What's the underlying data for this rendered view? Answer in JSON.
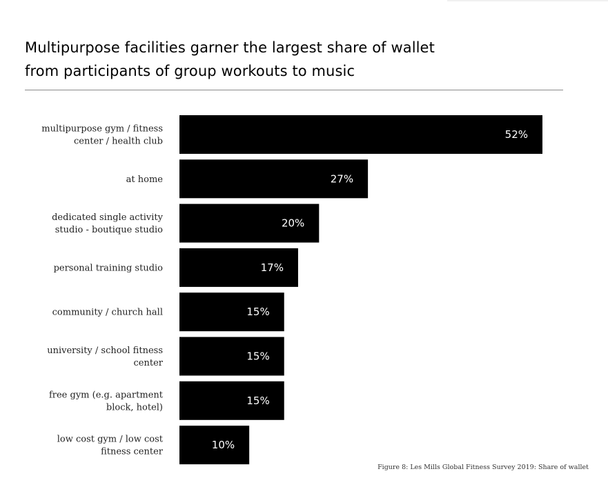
{
  "chart_data": {
    "type": "bar",
    "orientation": "horizontal",
    "title_lines": [
      "Multipurpose facilities garner the largest share of wallet",
      "from participants of group workouts to music"
    ],
    "categories": [
      [
        "multipurpose gym / fitness",
        "center / health club"
      ],
      [
        "at home"
      ],
      [
        "dedicated single activity",
        "studio - boutique studio"
      ],
      [
        "personal training studio"
      ],
      [
        "community / church hall"
      ],
      [
        "university / school fitness",
        "center"
      ],
      [
        "free gym (e.g. apartment",
        "block, hotel)"
      ],
      [
        "low cost gym  / low cost",
        "fitness center"
      ]
    ],
    "values": [
      52,
      27,
      20,
      17,
      15,
      15,
      15,
      10
    ],
    "value_labels": [
      "52%",
      "27%",
      "20%",
      "17%",
      "15%",
      "15%",
      "15%",
      "10%"
    ],
    "unit": "%",
    "xlim": [
      0,
      52
    ],
    "grid": false,
    "legend": "none",
    "bar_color": "#000000",
    "value_label_color": "#ffffff",
    "caption": "Figure 8: Les Mills Global Fitness Survey 2019: Share of wallet"
  }
}
